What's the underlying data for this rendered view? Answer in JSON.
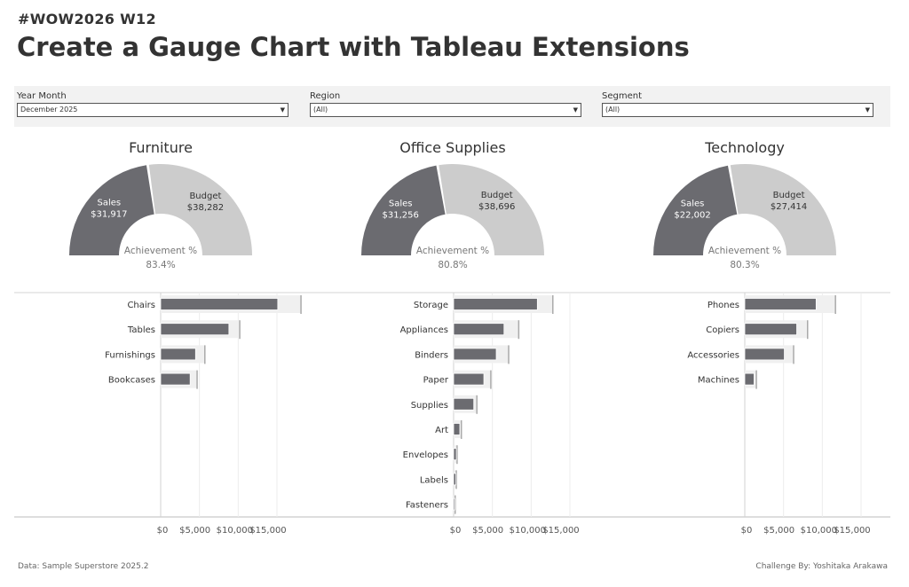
{
  "header": {
    "subtitle": "#WOW2026 W12",
    "title": "Create a Gauge Chart with Tableau Extensions"
  },
  "filters": [
    {
      "label": "Year Month",
      "value": "December 2025"
    },
    {
      "label": "Region",
      "value": "(All)"
    },
    {
      "label": "Segment",
      "value": "(All)"
    }
  ],
  "footer": {
    "source": "Data: Sample Superstore 2025.2",
    "credit": "Challenge By: Yoshitaka Arakawa"
  },
  "colors": {
    "sales": "#6b6b70",
    "budget": "#cccccc",
    "budget_bg": "#f0f0f0",
    "budget_line": "#aaaaaa"
  },
  "chart_data": [
    {
      "type": "gauge",
      "category": "Furniture",
      "sales_label": "Sales",
      "sales_text": "$31,917",
      "sales": 31917,
      "budget_label": "Budget",
      "budget_text": "$38,282",
      "budget": 38282,
      "achievement_label": "Achievement %",
      "achievement_text": "83.4%",
      "achievement": 83.4
    },
    {
      "type": "gauge",
      "category": "Office Supplies",
      "sales_label": "Sales",
      "sales_text": "$31,256",
      "sales": 31256,
      "budget_label": "Budget",
      "budget_text": "$38,696",
      "budget": 38696,
      "achievement_label": "Achievement %",
      "achievement_text": "80.8%",
      "achievement": 80.8
    },
    {
      "type": "gauge",
      "category": "Technology",
      "sales_label": "Sales",
      "sales_text": "$22,002",
      "sales": 22002,
      "budget_label": "Budget",
      "budget_text": "$27,414",
      "budget": 27414,
      "achievement_label": "Achievement %",
      "achievement_text": "80.3%",
      "achievement": 80.3
    },
    {
      "type": "bar",
      "panel": "Furniture",
      "categories": [
        "Chairs",
        "Tables",
        "Furnishings",
        "Bookcases"
      ],
      "sales": [
        15100,
        8800,
        4500,
        3800
      ],
      "budget": [
        18100,
        10200,
        5700,
        4700
      ],
      "xlim": [
        0,
        20000
      ],
      "xticks": [
        0,
        5000,
        10000,
        15000
      ],
      "xtick_labels": [
        "$0",
        "$5,000",
        "$10,000",
        "$15,000"
      ]
    },
    {
      "type": "bar",
      "panel": "Office Supplies",
      "categories": [
        "Storage",
        "Appliances",
        "Binders",
        "Paper",
        "Supplies",
        "Art",
        "Envelopes",
        "Labels",
        "Fasteners"
      ],
      "sales": [
        10800,
        6500,
        5500,
        3900,
        2600,
        800,
        350,
        300,
        150
      ],
      "budget": [
        12800,
        8400,
        7100,
        4800,
        3000,
        1000,
        450,
        350,
        200
      ],
      "xlim": [
        0,
        20000
      ],
      "xticks": [
        0,
        5000,
        10000,
        15000
      ],
      "xtick_labels": [
        "$0",
        "$5,000",
        "$10,000",
        "$15,000"
      ]
    },
    {
      "type": "bar",
      "panel": "Technology",
      "categories": [
        "Phones",
        "Copiers",
        "Accessories",
        "Machines"
      ],
      "sales": [
        9200,
        6700,
        5100,
        1200
      ],
      "budget": [
        11700,
        8100,
        6300,
        1500
      ],
      "xlim": [
        0,
        20000
      ],
      "xticks": [
        0,
        5000,
        10000,
        15000
      ],
      "xtick_labels": [
        "$0",
        "$5,000",
        "$10,000",
        "$15,000"
      ]
    }
  ]
}
